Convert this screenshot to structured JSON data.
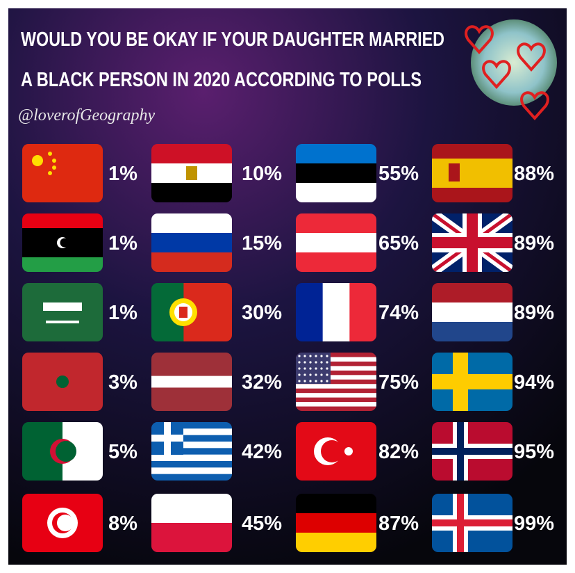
{
  "title": [
    "WOULD YOU BE OKAY IF YOUR DAUGHTER MARRIED",
    "A BLACK PERSON IN 2020 ACCORDING TO POLLS"
  ],
  "credit": "@loverofGeography",
  "columns": [
    [
      "1%",
      "1%",
      "1%",
      "3%",
      "5%",
      "8%"
    ],
    [
      "10%",
      "15%",
      "30%",
      "32%",
      "42%",
      "45%"
    ],
    [
      "55%",
      "65%",
      "74%",
      "75%",
      "82%",
      "87%"
    ],
    [
      "88%",
      "89%",
      "89%",
      "94%",
      "95%",
      "99%"
    ]
  ]
}
